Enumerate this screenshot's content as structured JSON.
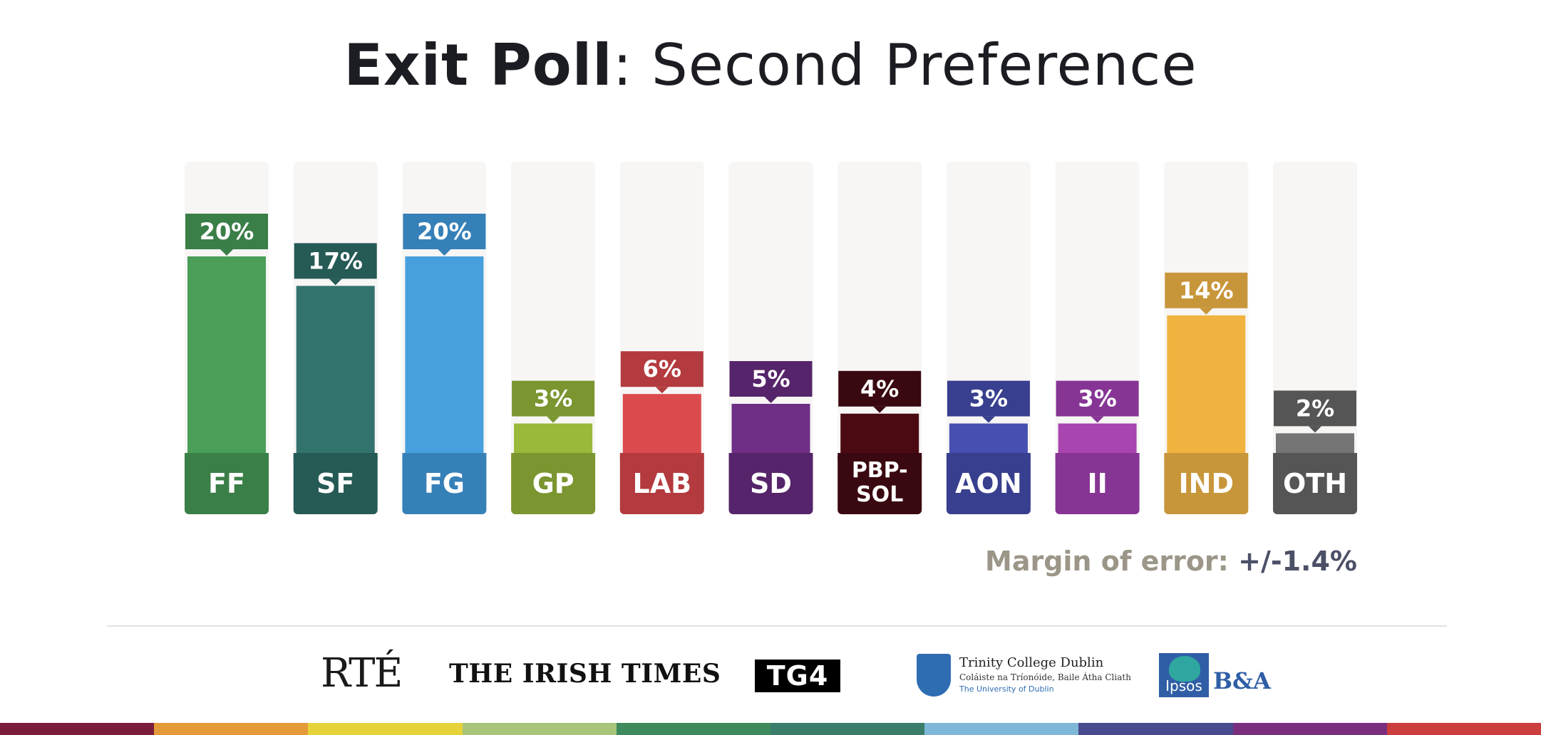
{
  "title": {
    "bold": "Exit Poll",
    "rest": ": Second Preference"
  },
  "chart_data": {
    "type": "bar",
    "title": "Exit Poll: Second Preference",
    "categories": [
      "FF",
      "SF",
      "FG",
      "GP",
      "LAB",
      "SD",
      "PBP-SOL",
      "AON",
      "II",
      "IND",
      "OTH"
    ],
    "category_lines": [
      [
        "FF"
      ],
      [
        "SF"
      ],
      [
        "FG"
      ],
      [
        "GP"
      ],
      [
        "LAB"
      ],
      [
        "SD"
      ],
      [
        "PBP-",
        "SOL"
      ],
      [
        "AON"
      ],
      [
        "II"
      ],
      [
        "IND"
      ],
      [
        "OTH"
      ]
    ],
    "values": [
      20,
      17,
      20,
      3,
      6,
      5,
      4,
      3,
      3,
      14,
      2
    ],
    "value_labels": [
      "20%",
      "17%",
      "20%",
      "3%",
      "6%",
      "5%",
      "4%",
      "3%",
      "3%",
      "14%",
      "2%"
    ],
    "ylim": [
      0,
      30
    ],
    "bar_colors": [
      "#4a9e58",
      "#33736e",
      "#47a0dd",
      "#9ab83a",
      "#db4b4e",
      "#6e2e85",
      "#4b0a12",
      "#4750b0",
      "#a845b0",
      "#f0b340",
      "#757575"
    ],
    "label_colors": [
      "#3a7f48",
      "#255a55",
      "#3680b8",
      "#7b9530",
      "#b33a3e",
      "#56246a",
      "#3a0810",
      "#383f8e",
      "#873595",
      "#c8963a",
      "#555555"
    ],
    "track_color": "#f7f6f5",
    "grid": false,
    "legend": "none"
  },
  "margin_of_error": {
    "label": "Margin of error:",
    "value": "+/-1.4%"
  },
  "logos": {
    "rte": "RTÉ",
    "irish_times": "THE IRISH TIMES",
    "tg4": "TG4",
    "tcd_name": "Trinity College Dublin",
    "tcd_sub1": "Coláiste na Tríonóide, Baile Átha Cliath",
    "tcd_sub2": "The University of Dublin",
    "ipsos": "Ipsos",
    "ba": "B&A"
  },
  "stripe_colors": [
    "#7a1d3a",
    "#e59a3a",
    "#e6d33a",
    "#a9c57a",
    "#3e8a5c",
    "#3a7d6a",
    "#7fb7d8",
    "#4a4a8e",
    "#7a2e7e",
    "#cc3d3d"
  ]
}
